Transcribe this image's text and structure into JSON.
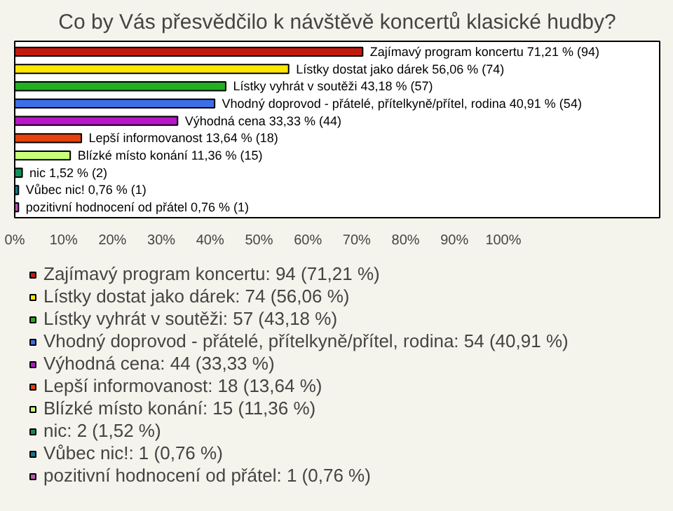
{
  "chart_data": {
    "type": "bar",
    "orientation": "horizontal",
    "stacked": true,
    "title": "Co by Vás přesvědčilo k návštěvě koncertů klasické hudby?",
    "categories": [
      null,
      null,
      null,
      null,
      null,
      null,
      null,
      null,
      null,
      null
    ],
    "series": [
      {
        "name": "Zajímavý program koncertu: 94 (71,21 %)",
        "color": "#c41a0e",
        "values": [
          71.21,
          null,
          null,
          null,
          null,
          null,
          null,
          null,
          null,
          null
        ],
        "value_labels": [
          "Zajímavý program koncertu 71,21 % (94)",
          null,
          null,
          null,
          null,
          null,
          null,
          null,
          null,
          null
        ]
      },
      {
        "name": "Lístky dostat jako dárek: 74 (56,06 %)",
        "color": "#ffe800",
        "values": [
          null,
          56.06,
          null,
          null,
          null,
          null,
          null,
          null,
          null,
          null
        ],
        "value_labels": [
          null,
          "Lístky dostat jako dárek 56,06 % (74)",
          null,
          null,
          null,
          null,
          null,
          null,
          null,
          null
        ]
      },
      {
        "name": "Lístky vyhrát v soutěži: 57 (43,18 %)",
        "color": "#22b022",
        "values": [
          null,
          null,
          43.18,
          null,
          null,
          null,
          null,
          null,
          null,
          null
        ],
        "value_labels": [
          null,
          null,
          "Lístky vyhrát v soutěži 43,18 % (57)",
          null,
          null,
          null,
          null,
          null,
          null,
          null
        ]
      },
      {
        "name": "Vhodný doprovod - přátelé, přítelkyně/přítel, rodina: 54 (40,91 %)",
        "color": "#3b6fe8",
        "values": [
          null,
          null,
          null,
          40.91,
          null,
          null,
          null,
          null,
          null,
          null
        ],
        "value_labels": [
          null,
          null,
          null,
          "Vhodný doprovod - přátelé, přítelkyně/přítel, rodina 40,91 % (54)",
          null,
          null,
          null,
          null,
          null,
          null
        ]
      },
      {
        "name": "Výhodná cena: 44 (33,33 %)",
        "color": "#b816c8",
        "values": [
          null,
          null,
          null,
          null,
          33.33,
          null,
          null,
          null,
          null,
          null
        ],
        "value_labels": [
          null,
          null,
          null,
          null,
          "Výhodná cena 33,33 % (44)",
          null,
          null,
          null,
          null,
          null
        ]
      },
      {
        "name": "Lepší informovanost: 18 (13,64 %)",
        "color": "#e8400e",
        "values": [
          null,
          null,
          null,
          null,
          null,
          13.64,
          null,
          null,
          null,
          null
        ],
        "value_labels": [
          null,
          null,
          null,
          null,
          null,
          "Lepší informovanost 13,64 % (18)",
          null,
          null,
          null,
          null
        ]
      },
      {
        "name": "Blízké místo konání: 15 (11,36 %)",
        "color": "#c8ff78",
        "values": [
          null,
          null,
          null,
          null,
          null,
          null,
          11.36,
          null,
          null,
          null
        ],
        "value_labels": [
          null,
          null,
          null,
          null,
          null,
          null,
          "Blízké místo konání 11,36 % (15)",
          null,
          null,
          null
        ]
      },
      {
        "name": "nic: 2 (1,52 %)",
        "color": "#10905a",
        "values": [
          null,
          null,
          null,
          null,
          null,
          null,
          null,
          1.52,
          null,
          null
        ],
        "value_labels": [
          null,
          null,
          null,
          null,
          null,
          null,
          null,
          "nic 1,52 % (2)",
          null,
          null
        ]
      },
      {
        "name": "Vůbec nic!: 1 (0,76 %)",
        "color": "#117a8a",
        "values": [
          null,
          null,
          null,
          null,
          null,
          null,
          null,
          null,
          0.76,
          null
        ],
        "value_labels": [
          null,
          null,
          null,
          null,
          null,
          null,
          null,
          null,
          "Vůbec nic! 0,76 % (1)",
          null
        ]
      },
      {
        "name": "pozitivní hodnocení od přátel: 1 (0,76 %)",
        "color": "#b858b8",
        "values": [
          null,
          null,
          null,
          null,
          null,
          null,
          null,
          null,
          null,
          0.76
        ],
        "value_labels": [
          null,
          null,
          null,
          null,
          null,
          null,
          null,
          null,
          null,
          "pozitivní hodnocení od přátel 0,76 % (1)"
        ]
      }
    ],
    "xlim": [
      0,
      132
    ],
    "xticks": [
      {
        "value": 0,
        "label": "0%"
      },
      {
        "value": 10,
        "label": "10%"
      },
      {
        "value": 20,
        "label": "20%"
      },
      {
        "value": 30,
        "label": "30%"
      },
      {
        "value": 40,
        "label": "40%"
      },
      {
        "value": 50,
        "label": "50%"
      },
      {
        "value": 60,
        "label": "60%"
      },
      {
        "value": 70,
        "label": "70%"
      },
      {
        "value": 80,
        "label": "80%"
      },
      {
        "value": 90,
        "label": "90%"
      },
      {
        "value": 100,
        "label": "100%"
      }
    ],
    "tick_labels": "x",
    "grid": false,
    "legend": "bottom"
  }
}
